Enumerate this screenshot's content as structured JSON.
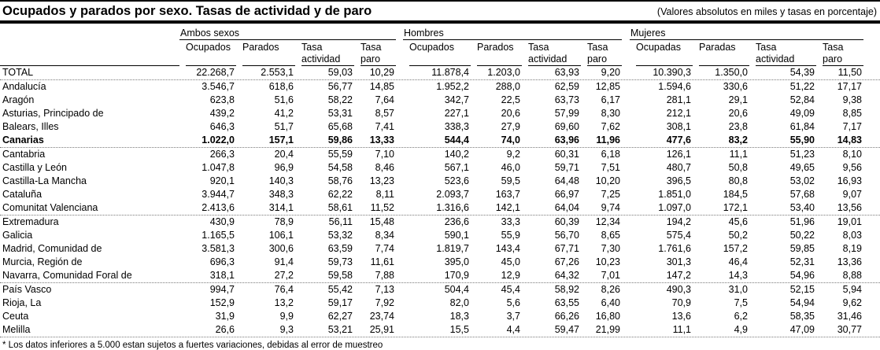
{
  "header": {
    "title": "Ocupados y parados por sexo. Tasas de actividad y de paro",
    "units_note": "(Valores absolutos en miles y tasas en porcentaje)"
  },
  "table": {
    "groups": [
      {
        "label": "Ambos sexos",
        "columns": [
          "Ocupados",
          "Parados",
          "Tasa actividad",
          "Tasa paro"
        ]
      },
      {
        "label": "Hombres",
        "columns": [
          "Ocupados",
          "Parados",
          "Tasa actividad",
          "Tasa paro"
        ]
      },
      {
        "label": "Mujeres",
        "columns": [
          "Ocupadas",
          "Paradas",
          "Tasa actividad",
          "Tasa paro"
        ]
      }
    ],
    "rows": [
      {
        "label": "TOTAL",
        "bold": false,
        "separator_after": true,
        "values": [
          "22.268,7",
          "2.553,1",
          "59,03",
          "10,29",
          "11.878,4",
          "1.203,0",
          "63,93",
          "9,20",
          "10.390,3",
          "1.350,0",
          "54,39",
          "11,50"
        ]
      },
      {
        "label": "Andalucía",
        "bold": false,
        "separator_after": false,
        "values": [
          "3.546,7",
          "618,6",
          "56,77",
          "14,85",
          "1.952,2",
          "288,0",
          "62,59",
          "12,85",
          "1.594,6",
          "330,6",
          "51,22",
          "17,17"
        ]
      },
      {
        "label": "Aragón",
        "bold": false,
        "separator_after": false,
        "values": [
          "623,8",
          "51,6",
          "58,22",
          "7,64",
          "342,7",
          "22,5",
          "63,73",
          "6,17",
          "281,1",
          "29,1",
          "52,84",
          "9,38"
        ]
      },
      {
        "label": "Asturias, Principado de",
        "bold": false,
        "separator_after": false,
        "values": [
          "439,2",
          "41,2",
          "53,31",
          "8,57",
          "227,1",
          "20,6",
          "57,99",
          "8,30",
          "212,1",
          "20,6",
          "49,09",
          "8,85"
        ]
      },
      {
        "label": "Balears, Illes",
        "bold": false,
        "separator_after": false,
        "values": [
          "646,3",
          "51,7",
          "65,68",
          "7,41",
          "338,3",
          "27,9",
          "69,60",
          "7,62",
          "308,1",
          "23,8",
          "61,84",
          "7,17"
        ]
      },
      {
        "label": "Canarias",
        "bold": true,
        "separator_after": true,
        "values": [
          "1.022,0",
          "157,1",
          "59,86",
          "13,33",
          "544,4",
          "74,0",
          "63,96",
          "11,96",
          "477,6",
          "83,2",
          "55,90",
          "14,83"
        ]
      },
      {
        "label": "Cantabria",
        "bold": false,
        "separator_after": false,
        "values": [
          "266,3",
          "20,4",
          "55,59",
          "7,10",
          "140,2",
          "9,2",
          "60,31",
          "6,18",
          "126,1",
          "11,1",
          "51,23",
          "8,10"
        ]
      },
      {
        "label": "Castilla y León",
        "bold": false,
        "separator_after": false,
        "values": [
          "1.047,8",
          "96,9",
          "54,58",
          "8,46",
          "567,1",
          "46,0",
          "59,71",
          "7,51",
          "480,7",
          "50,8",
          "49,65",
          "9,56"
        ]
      },
      {
        "label": "Castilla-La Mancha",
        "bold": false,
        "separator_after": false,
        "values": [
          "920,1",
          "140,3",
          "58,76",
          "13,23",
          "523,6",
          "59,5",
          "64,48",
          "10,20",
          "396,5",
          "80,8",
          "53,02",
          "16,93"
        ]
      },
      {
        "label": "Cataluña",
        "bold": false,
        "separator_after": false,
        "values": [
          "3.944,7",
          "348,3",
          "62,22",
          "8,11",
          "2.093,7",
          "163,7",
          "66,97",
          "7,25",
          "1.851,0",
          "184,5",
          "57,68",
          "9,07"
        ]
      },
      {
        "label": "Comunitat Valenciana",
        "bold": false,
        "separator_after": true,
        "values": [
          "2.413,6",
          "314,1",
          "58,61",
          "11,52",
          "1.316,6",
          "142,1",
          "64,04",
          "9,74",
          "1.097,0",
          "172,1",
          "53,40",
          "13,56"
        ]
      },
      {
        "label": "Extremadura",
        "bold": false,
        "separator_after": false,
        "values": [
          "430,9",
          "78,9",
          "56,11",
          "15,48",
          "236,6",
          "33,3",
          "60,39",
          "12,34",
          "194,2",
          "45,6",
          "51,96",
          "19,01"
        ]
      },
      {
        "label": "Galicia",
        "bold": false,
        "separator_after": false,
        "values": [
          "1.165,5",
          "106,1",
          "53,32",
          "8,34",
          "590,1",
          "55,9",
          "56,70",
          "8,65",
          "575,4",
          "50,2",
          "50,22",
          "8,03"
        ]
      },
      {
        "label": "Madrid, Comunidad de",
        "bold": false,
        "separator_after": false,
        "values": [
          "3.581,3",
          "300,6",
          "63,59",
          "7,74",
          "1.819,7",
          "143,4",
          "67,71",
          "7,30",
          "1.761,6",
          "157,2",
          "59,85",
          "8,19"
        ]
      },
      {
        "label": "Murcia, Región de",
        "bold": false,
        "separator_after": false,
        "values": [
          "696,3",
          "91,4",
          "59,73",
          "11,61",
          "395,0",
          "45,0",
          "67,26",
          "10,23",
          "301,3",
          "46,4",
          "52,31",
          "13,36"
        ]
      },
      {
        "label": "Navarra, Comunidad Foral de",
        "bold": false,
        "separator_after": true,
        "values": [
          "318,1",
          "27,2",
          "59,58",
          "7,88",
          "170,9",
          "12,9",
          "64,32",
          "7,01",
          "147,2",
          "14,3",
          "54,96",
          "8,88"
        ]
      },
      {
        "label": "País Vasco",
        "bold": false,
        "separator_after": false,
        "values": [
          "994,7",
          "76,4",
          "55,42",
          "7,13",
          "504,4",
          "45,4",
          "58,92",
          "8,26",
          "490,3",
          "31,0",
          "52,15",
          "5,94"
        ]
      },
      {
        "label": "Rioja, La",
        "bold": false,
        "separator_after": false,
        "values": [
          "152,9",
          "13,2",
          "59,17",
          "7,92",
          "82,0",
          "5,6",
          "63,55",
          "6,40",
          "70,9",
          "7,5",
          "54,94",
          "9,62"
        ]
      },
      {
        "label": "Ceuta",
        "bold": false,
        "separator_after": false,
        "values": [
          "31,9",
          "9,9",
          "62,27",
          "23,74",
          "18,3",
          "3,7",
          "66,26",
          "16,80",
          "13,6",
          "6,2",
          "58,35",
          "31,46"
        ]
      },
      {
        "label": "Melilla",
        "bold": false,
        "separator_after": true,
        "values": [
          "26,6",
          "9,3",
          "53,21",
          "25,91",
          "15,5",
          "4,4",
          "59,47",
          "21,99",
          "11,1",
          "4,9",
          "47,09",
          "30,77"
        ]
      }
    ]
  },
  "footnote": "* Los datos inferiores a 5.000 estan sujetos a fuertes variaciones, debidas al error de muestreo",
  "colors": {
    "rule": "#000000",
    "dotted_separator": "#7a7a7a",
    "text": "#000000",
    "background": "#ffffff"
  }
}
